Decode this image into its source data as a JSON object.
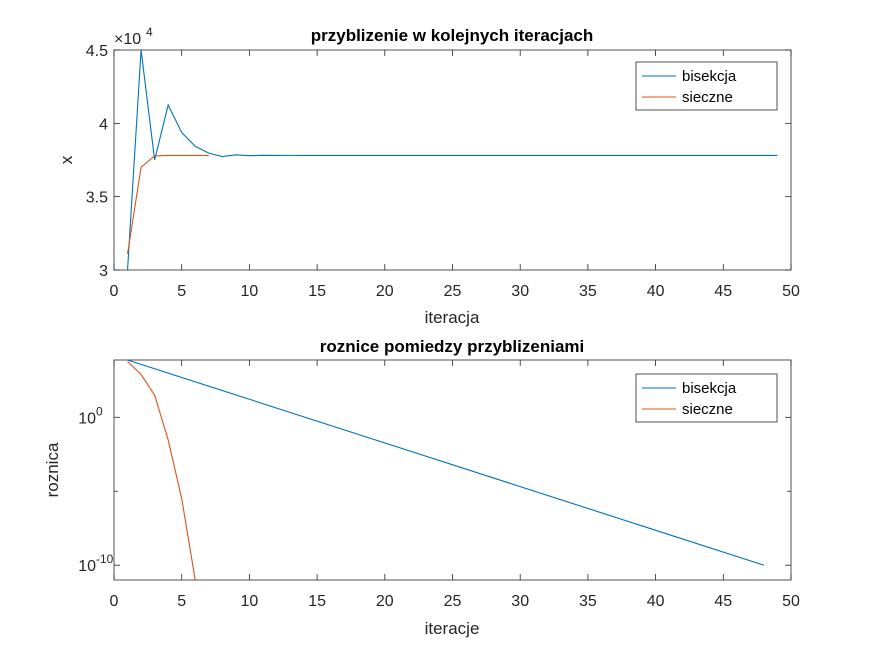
{
  "colors": {
    "bisekcja": "#0072BD",
    "sieczne": "#D95319",
    "axis": "#262626"
  },
  "chart_data": [
    {
      "type": "line",
      "title": "przyblizenie w kolejnych iteracjach",
      "xlabel": "iteracja",
      "ylabel": "x",
      "xlim": [
        0,
        50
      ],
      "ylim": [
        30000,
        45000
      ],
      "xticks": [
        0,
        5,
        10,
        15,
        20,
        25,
        30,
        35,
        40,
        45,
        50
      ],
      "yticks": [
        30000,
        35000,
        40000,
        45000
      ],
      "ytick_labels": [
        "3",
        "3.5",
        "4",
        "4.5"
      ],
      "exponent_label": "×10",
      "exponent_power": "4",
      "grid": false,
      "legend_position": "top-right",
      "series": [
        {
          "name": "bisekcja",
          "color": "#0072BD",
          "x": [
            1,
            2,
            3,
            4,
            5,
            6,
            7,
            8,
            9,
            10,
            11,
            12,
            13,
            14,
            15,
            16,
            17,
            18,
            19,
            20,
            21,
            22,
            23,
            24,
            25,
            26,
            27,
            28,
            29,
            30,
            31,
            32,
            33,
            34,
            35,
            36,
            37,
            38,
            39,
            40,
            41,
            42,
            43,
            44,
            45,
            46,
            47,
            48,
            49
          ],
          "y": [
            30000,
            45000,
            37500,
            41250,
            39375,
            38438,
            37969,
            37734,
            37852,
            37793,
            37822,
            37808,
            37815,
            37811,
            37813,
            37812,
            37812,
            37812,
            37812,
            37812,
            37812,
            37812,
            37812,
            37812,
            37812,
            37812,
            37812,
            37812,
            37812,
            37812,
            37812,
            37812,
            37812,
            37812,
            37812,
            37812,
            37812,
            37812,
            37812,
            37812,
            37812,
            37812,
            37812,
            37812,
            37812,
            37812,
            37812,
            37812,
            37812
          ]
        },
        {
          "name": "sieczne",
          "color": "#D95319",
          "x": [
            1,
            2,
            3,
            4,
            5,
            6,
            7
          ],
          "y": [
            31100,
            37000,
            37780,
            37812,
            37812,
            37812,
            37812
          ]
        }
      ]
    },
    {
      "type": "line",
      "title": "roznice pomiedzy przyblizeniami",
      "xlabel": "iteracje",
      "ylabel": "roznica",
      "xlim": [
        0,
        50
      ],
      "ylog": true,
      "ylim": [
        1e-11,
        7500
      ],
      "xticks": [
        0,
        5,
        10,
        15,
        20,
        25,
        30,
        35,
        40,
        45,
        50
      ],
      "yticks_major": [
        1,
        1e-10
      ],
      "ytick_label_base": "10",
      "ytick_label_powers": [
        "0",
        "-10"
      ],
      "yticks_minor": [
        1e-05
      ],
      "grid": false,
      "legend_position": "top-right",
      "series": [
        {
          "name": "bisekcja",
          "color": "#0072BD",
          "x": [
            1,
            48
          ],
          "y": [
            7500,
            1e-10
          ]
        },
        {
          "name": "sieczne",
          "color": "#D95319",
          "x": [
            1,
            2,
            3,
            4,
            5,
            6
          ],
          "y": [
            5900,
            780,
            32,
            0.03,
            3.2e-06,
            1e-11
          ]
        }
      ]
    }
  ]
}
